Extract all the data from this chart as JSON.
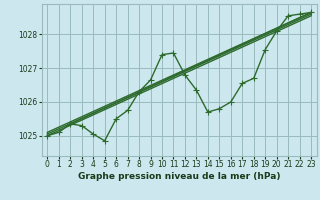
{
  "xlabel": "Graphe pression niveau de la mer (hPa)",
  "bg_color": "#cce8ee",
  "grid_color": "#99bbbb",
  "line_color": "#2d6a2d",
  "x_ticks": [
    0,
    1,
    2,
    3,
    4,
    5,
    6,
    7,
    8,
    9,
    10,
    11,
    12,
    13,
    14,
    15,
    16,
    17,
    18,
    19,
    20,
    21,
    22,
    23
  ],
  "y_ticks": [
    1025,
    1026,
    1027,
    1028
  ],
  "ylim": [
    1024.4,
    1028.9
  ],
  "xlim": [
    -0.5,
    23.5
  ],
  "series_wavy": [
    [
      1025.0,
      1025.1,
      1025.35,
      1025.3,
      1025.05,
      1024.85,
      1025.5,
      1025.75,
      1026.3,
      1026.65,
      1027.4,
      1027.45,
      1026.8,
      1026.35,
      1025.7,
      1025.8,
      1026.0,
      1026.55,
      1026.7,
      1027.55,
      1028.1,
      1028.55,
      1028.6,
      1028.65
    ]
  ],
  "series_straight": [
    [
      [
        0,
        1025.0
      ],
      [
        23,
        1028.55
      ]
    ],
    [
      [
        0,
        1025.05
      ],
      [
        23,
        1028.6
      ]
    ],
    [
      [
        0,
        1025.1
      ],
      [
        23,
        1028.65
      ]
    ],
    [
      [
        2,
        1025.35
      ],
      [
        23,
        1028.65
      ]
    ]
  ],
  "marker": "+",
  "markersize": 4,
  "linewidth": 1.0,
  "tick_fontsize": 5.5,
  "label_fontsize": 6.5,
  "label_fontweight": "bold"
}
